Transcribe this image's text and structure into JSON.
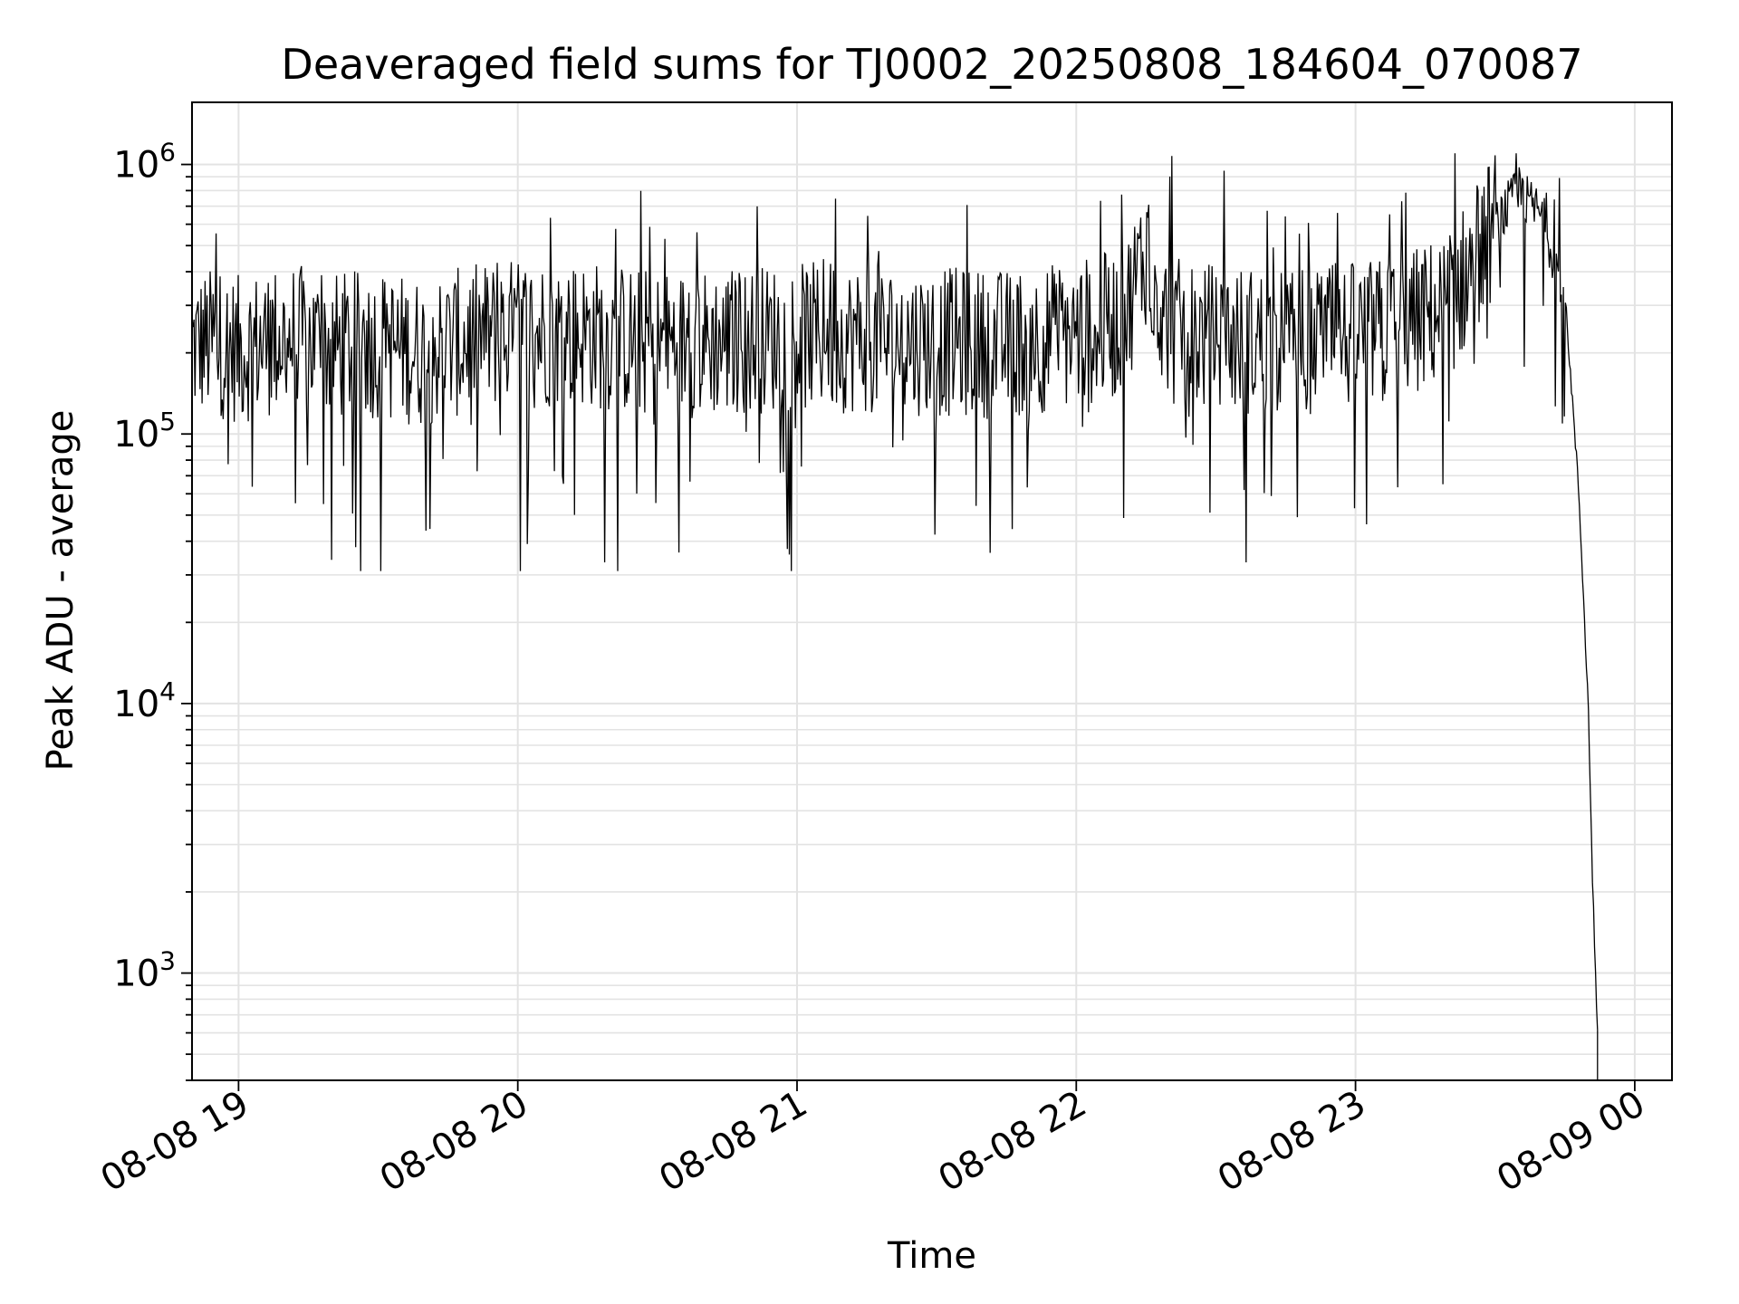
{
  "chart_data": {
    "type": "line",
    "title": "Deaveraged field sums for TJ0002_20250808_184604_070087",
    "xlabel": "Time",
    "ylabel": "Peak ADU - average",
    "yscale": "log",
    "ylim": [
      400,
      1700000
    ],
    "xlim": [
      "2025-08-08 18:50",
      "2025-08-09 00:08"
    ],
    "grid": true,
    "legend": "none",
    "x_ticks": [
      {
        "at": "2025-08-08 19:00",
        "label": "08-08 19"
      },
      {
        "at": "2025-08-08 20:00",
        "label": "08-08 20"
      },
      {
        "at": "2025-08-08 21:00",
        "label": "08-08 21"
      },
      {
        "at": "2025-08-08 22:00",
        "label": "08-08 22"
      },
      {
        "at": "2025-08-08 23:00",
        "label": "08-08 23"
      },
      {
        "at": "2025-08-09 00:00",
        "label": "08-09 00"
      }
    ],
    "y_ticks": [
      {
        "value": 1000,
        "base": "10",
        "exp": "3"
      },
      {
        "value": 10000,
        "base": "10",
        "exp": "4"
      },
      {
        "value": 100000,
        "base": "10",
        "exp": "5"
      },
      {
        "value": 1000000,
        "base": "10",
        "exp": "6"
      }
    ],
    "series": [
      {
        "color": "#000000",
        "x": [
          "2025-08-08 18:50",
          "2025-08-08 18:55",
          "2025-08-08 19:00",
          "2025-08-08 19:10",
          "2025-08-08 19:20",
          "2025-08-08 19:30",
          "2025-08-08 19:40",
          "2025-08-08 19:50",
          "2025-08-08 20:00",
          "2025-08-08 20:15",
          "2025-08-08 20:30",
          "2025-08-08 20:45",
          "2025-08-08 21:00",
          "2025-08-08 21:15",
          "2025-08-08 21:30",
          "2025-08-08 21:45",
          "2025-08-08 22:00",
          "2025-08-08 22:10",
          "2025-08-08 22:15",
          "2025-08-08 22:20",
          "2025-08-08 22:30",
          "2025-08-08 22:45",
          "2025-08-08 23:00",
          "2025-08-08 23:10",
          "2025-08-08 23:20",
          "2025-08-08 23:30",
          "2025-08-08 23:35",
          "2025-08-08 23:40",
          "2025-08-08 23:45",
          "2025-08-08 23:48",
          "2025-08-08 23:50",
          "2025-08-08 23:51",
          "2025-08-08 23:52"
        ],
        "y": [
          210000,
          220000,
          205000,
          230000,
          210000,
          215000,
          200000,
          225000,
          240000,
          235000,
          215000,
          220000,
          230000,
          225000,
          220000,
          215000,
          235000,
          260000,
          480000,
          240000,
          225000,
          220000,
          230000,
          245000,
          300000,
          600000,
          780000,
          650000,
          330000,
          60000,
          10000,
          2000,
          600
        ],
        "noise": {
          "spikes_high_max": 1100000,
          "spikes_low_min": 31000
        }
      }
    ]
  }
}
